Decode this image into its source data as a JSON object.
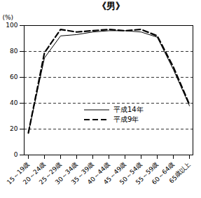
{
  "chart_data": {
    "type": "line",
    "title": "《男》",
    "y_label": "(%)",
    "categories": [
      "15～19歳",
      "20～24歳",
      "25～29歳",
      "30～34歳",
      "35～39歳",
      "40～44歳",
      "45～49歳",
      "50～54歳",
      "55～59歳",
      "60～64歳",
      "65歳以上"
    ],
    "series": [
      {
        "name": "平成14年",
        "color": "#000000",
        "line_style": "solid",
        "values": [
          17,
          75,
          92,
          93,
          95,
          96,
          96,
          95,
          91,
          66,
          38
        ]
      },
      {
        "name": "平成9年",
        "color": "#000000",
        "line_style": "dashed",
        "values": [
          17,
          79,
          97,
          95,
          96,
          97,
          96,
          97,
          92,
          68,
          39
        ]
      }
    ],
    "ylim": [
      0,
      100
    ],
    "yticks": [
      0,
      20,
      40,
      60,
      80,
      100
    ],
    "grid": true,
    "legend": "center"
  }
}
